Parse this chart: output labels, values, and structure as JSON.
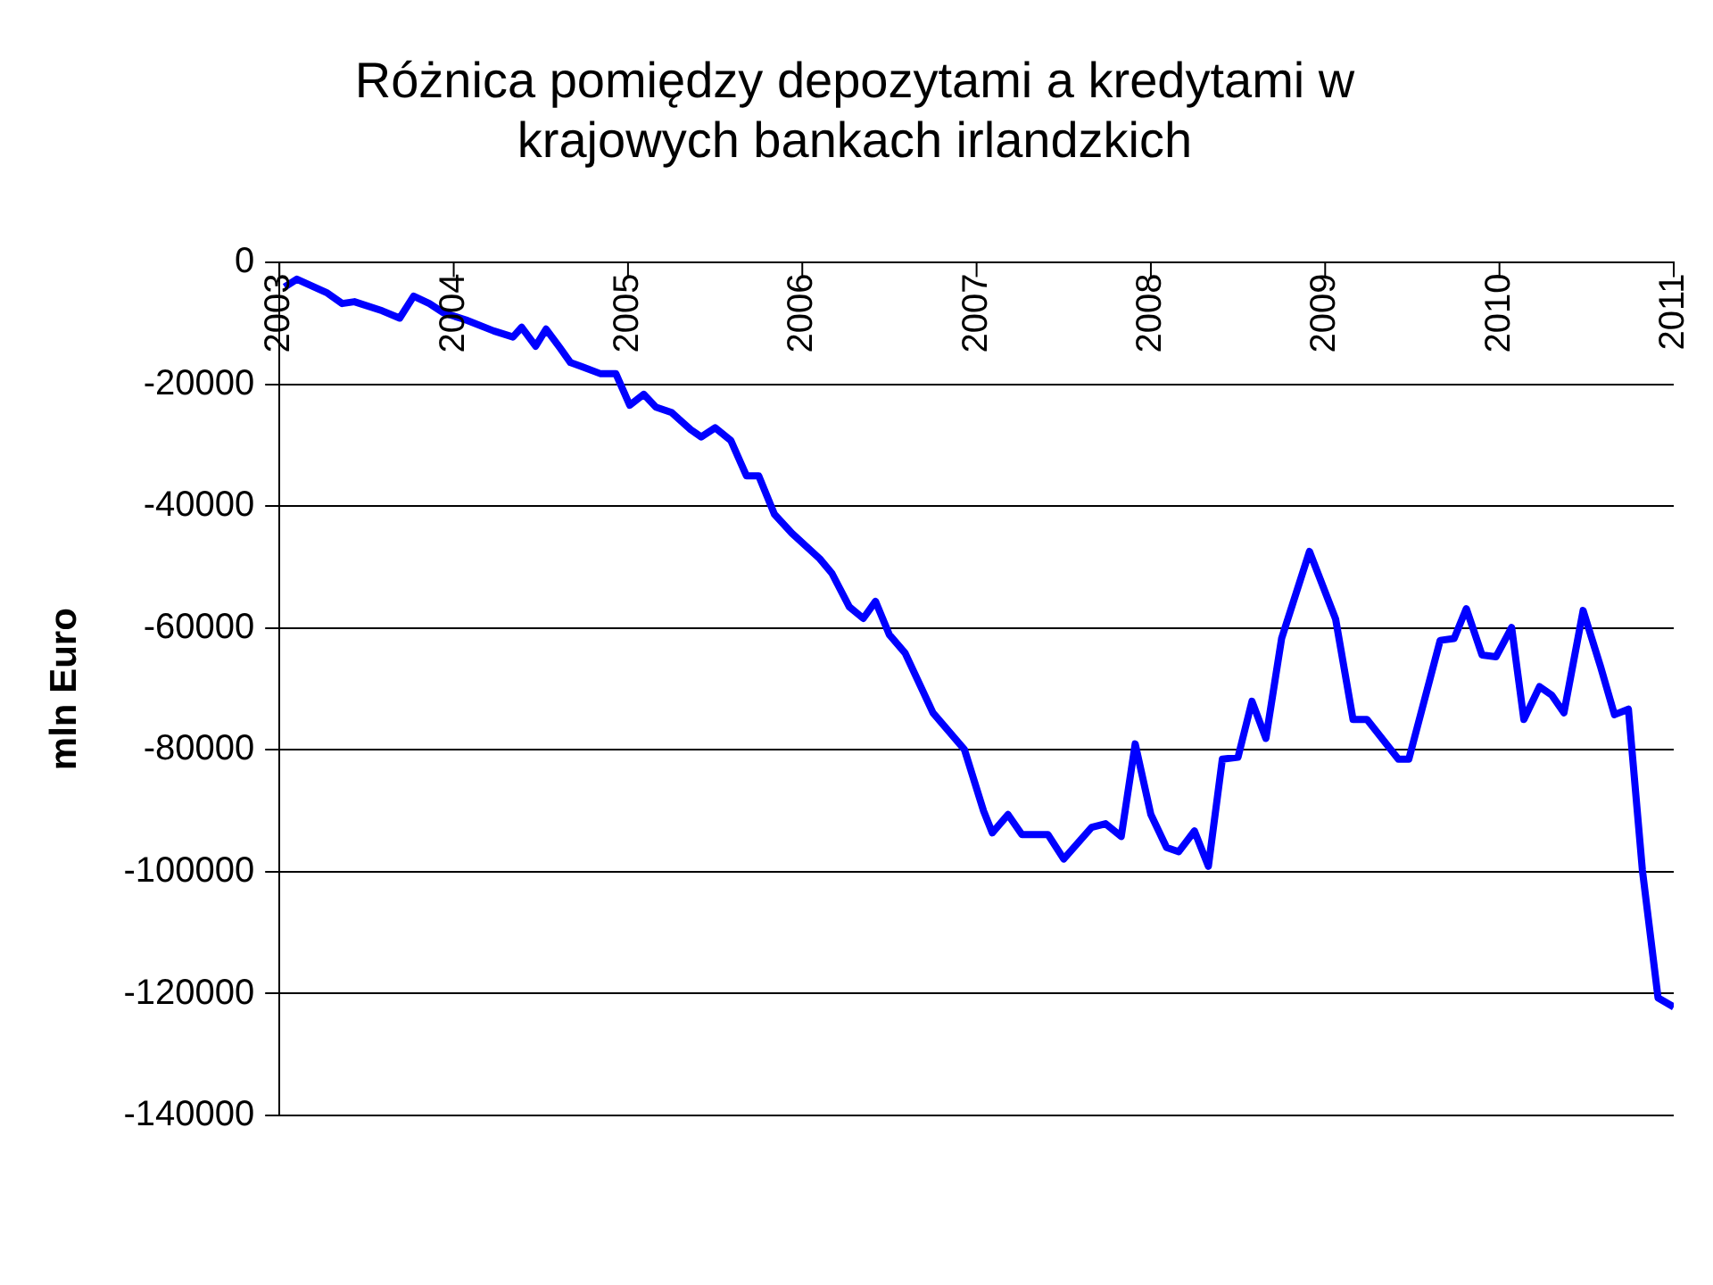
{
  "chart_data": {
    "type": "line",
    "title": [
      "Różnica pomiędzy depozytami a kredytami w",
      "krajowych bankach irlandzkich"
    ],
    "ylabel": "mln Euro",
    "x": [
      2003.03,
      2003.1,
      2003.27,
      2003.36,
      2003.43,
      2003.59,
      2003.69,
      2003.77,
      2003.86,
      2003.94,
      2004.07,
      2004.23,
      2004.34,
      2004.39,
      2004.47,
      2004.53,
      2004.61,
      2004.67,
      2004.73,
      2004.84,
      2004.93,
      2005.01,
      2005.09,
      2005.16,
      2005.25,
      2005.36,
      2005.42,
      2005.5,
      2005.59,
      2005.68,
      2005.75,
      2005.84,
      2005.94,
      2006.1,
      2006.17,
      2006.27,
      2006.35,
      2006.42,
      2006.5,
      2006.59,
      2006.75,
      2006.93,
      2007.04,
      2007.09,
      2007.18,
      2007.26,
      2007.41,
      2007.5,
      2007.66,
      2007.74,
      2007.83,
      2007.91,
      2008.0,
      2008.09,
      2008.16,
      2008.25,
      2008.33,
      2008.41,
      2008.5,
      2008.58,
      2008.66,
      2008.75,
      2008.91,
      2009.06,
      2009.16,
      2009.24,
      2009.42,
      2009.48,
      2009.66,
      2009.74,
      2009.81,
      2009.9,
      2009.98,
      2010.07,
      2010.14,
      2010.23,
      2010.3,
      2010.37,
      2010.48,
      2010.58,
      2010.66,
      2010.74,
      2010.82,
      2010.91,
      2011.0
    ],
    "values": [
      -4000,
      -2700,
      -4900,
      -6700,
      -6400,
      -7900,
      -9100,
      -5500,
      -6700,
      -8200,
      -9400,
      -11200,
      -12200,
      -10600,
      -13700,
      -10900,
      -14000,
      -16400,
      -17000,
      -18200,
      -18200,
      -23400,
      -21600,
      -23700,
      -24600,
      -27400,
      -28600,
      -27100,
      -29200,
      -35000,
      -35000,
      -41300,
      -44400,
      -48600,
      -51000,
      -56500,
      -58400,
      -55600,
      -61100,
      -64100,
      -73900,
      -79900,
      -90000,
      -93600,
      -90600,
      -93900,
      -93900,
      -97900,
      -92700,
      -92100,
      -94200,
      -79000,
      -90600,
      -96000,
      -96700,
      -93300,
      -99100,
      -81500,
      -81200,
      -72000,
      -78100,
      -61700,
      -47400,
      -58500,
      -75000,
      -75000,
      -81500,
      -81500,
      -62000,
      -61700,
      -56800,
      -64400,
      -64700,
      -59900,
      -75000,
      -69600,
      -71000,
      -73900,
      -57100,
      -66300,
      -74200,
      -73300,
      -99700,
      -120700,
      -122200
    ],
    "color": "#0000ff",
    "xlim": [
      2003,
      2011
    ],
    "xticks": [
      2003,
      2004,
      2005,
      2006,
      2007,
      2008,
      2009,
      2010,
      2011
    ],
    "ylim": [
      -140000,
      0
    ],
    "yticks": [
      -140000,
      -120000,
      -100000,
      -80000,
      -60000,
      -40000,
      -20000,
      0
    ],
    "grid": "y",
    "legend": false
  }
}
